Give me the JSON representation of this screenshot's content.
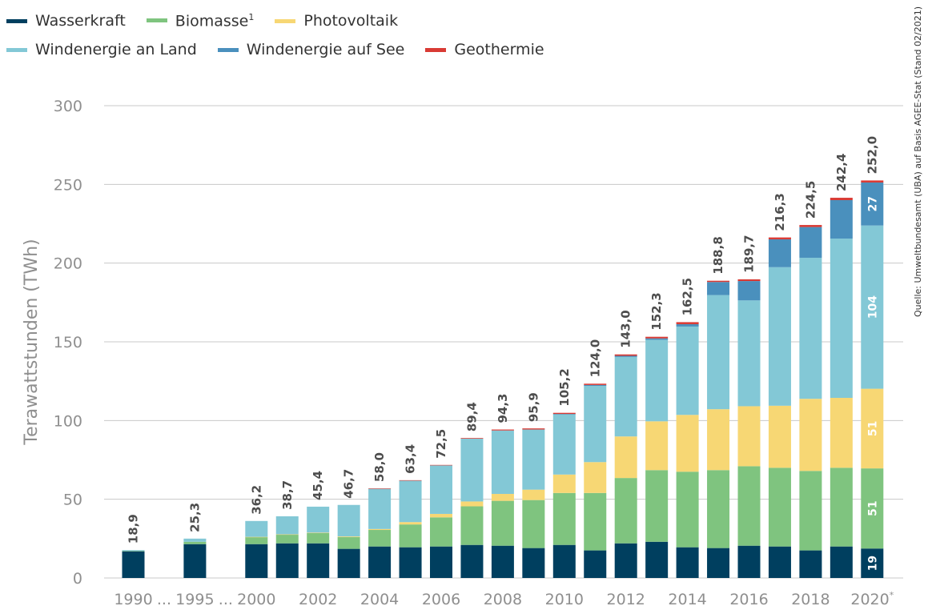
{
  "chart_data": {
    "type": "bar",
    "stacked": true,
    "categories": [
      "1990",
      "1995",
      "2000",
      "2001",
      "2002",
      "2003",
      "2004",
      "2005",
      "2006",
      "2007",
      "2008",
      "2009",
      "2010",
      "2011",
      "2012",
      "2013",
      "2014",
      "2015",
      "2016",
      "2017",
      "2018",
      "2019",
      "2020"
    ],
    "x_tick_labels": [
      "1990",
      "...",
      "1995",
      "...",
      "2000",
      "2002",
      "2004",
      "2006",
      "2008",
      "2010",
      "2012",
      "2014",
      "2016",
      "2018",
      "2020"
    ],
    "x_tick_footnote": "*",
    "ylabel": "Terawattstunden (TWh)",
    "ylim": [
      0,
      300
    ],
    "yticks": [
      0,
      50,
      100,
      150,
      200,
      250,
      300
    ],
    "grid": true,
    "legend_position": "top-left",
    "series": [
      {
        "name": "Wasserkraft",
        "color": "#003f5f",
        "values": [
          17,
          21.5,
          21.5,
          22,
          22,
          18.5,
          20,
          19.5,
          20,
          21,
          20.5,
          19,
          21,
          17.5,
          22,
          23,
          19.5,
          19,
          20.5,
          20,
          17.5,
          20,
          18.7
        ]
      },
      {
        "name": "Biomasse",
        "name_superscript": "1",
        "color": "#7fc47f",
        "values": [
          0.2,
          1.5,
          4.5,
          5.5,
          6.5,
          7.5,
          10.5,
          14.5,
          18.5,
          24.5,
          28.5,
          30.5,
          33,
          36.5,
          41.5,
          45.5,
          48,
          49.5,
          50.5,
          50,
          50.5,
          50,
          50.9
        ]
      },
      {
        "name": "Photovoltaik",
        "color": "#f7d774",
        "values": [
          0,
          0,
          0.1,
          0.2,
          0.3,
          0.4,
          0.6,
          1.5,
          2.2,
          3.1,
          4.4,
          6.6,
          11.7,
          19.6,
          26.4,
          31.0,
          36.1,
          38.7,
          38.1,
          39.4,
          45.8,
          44.4,
          50.6
        ]
      },
      {
        "name": "Windenergie an Land",
        "color": "#83c8d6",
        "values": [
          0.5,
          2.0,
          10.1,
          11.5,
          16.5,
          20.0,
          25.6,
          26.4,
          30.9,
          39.9,
          40.3,
          38.2,
          38.3,
          48.4,
          50.5,
          51.8,
          56.1,
          72.5,
          67.2,
          88.0,
          89.6,
          101.2,
          103.7
        ]
      },
      {
        "name": "Windenergie auf See",
        "color": "#4a90bd",
        "values": [
          0,
          0,
          0,
          0,
          0,
          0,
          0,
          0,
          0,
          0,
          0,
          0,
          0.2,
          0.6,
          0.7,
          0.9,
          1.5,
          8.3,
          12.3,
          17.7,
          19.5,
          24.4,
          27.3
        ]
      },
      {
        "name": "Geothermie",
        "color": "#d93a34",
        "values": [
          0,
          0,
          0,
          0,
          0,
          0,
          0.2,
          0.2,
          0.2,
          0.4,
          0.6,
          0.7,
          0.7,
          0.8,
          0.9,
          1.0,
          1.3,
          0.8,
          1.1,
          1.2,
          1.3,
          1.5,
          1.3
        ]
      }
    ],
    "totals": [
      "18,9",
      "25,3",
      "36,2",
      "38,7",
      "45,4",
      "46,7",
      "58,0",
      "63,4",
      "72,5",
      "89,4",
      "94,3",
      "95,9",
      "105,2",
      "124,0",
      "143,0",
      "152,3",
      "162,5",
      "188,8",
      "189,7",
      "216,3",
      "224,5",
      "242,4",
      "252,0"
    ],
    "annotations_2020": [
      {
        "series": "Wasserkraft",
        "label": "19"
      },
      {
        "series": "Biomasse",
        "label": "51"
      },
      {
        "series": "Photovoltaik",
        "label": "51"
      },
      {
        "series": "Windenergie an Land",
        "label": "104"
      },
      {
        "series": "Windenergie auf See",
        "label": "27"
      }
    ],
    "source": "Quelle: Umweltbundesamt (UBA) auf Basis AGEE-Stat (Stand 02/2021)"
  }
}
